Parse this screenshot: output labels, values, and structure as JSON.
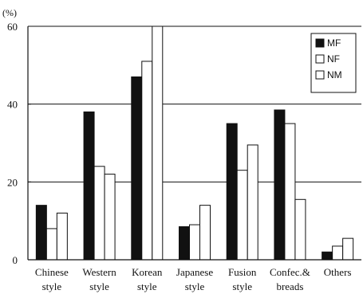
{
  "chart_data": {
    "type": "bar",
    "unit_label": "(%)",
    "categories": [
      [
        "Chinese",
        "style"
      ],
      [
        "Western",
        "style"
      ],
      [
        "Korean",
        "style"
      ],
      [
        "Japanese",
        "style"
      ],
      [
        "Fusion",
        "style"
      ],
      [
        "Confec.&",
        "breads"
      ],
      [
        "Others"
      ]
    ],
    "series": [
      {
        "name": "MF",
        "color": "#111111",
        "values": [
          14,
          38,
          47,
          8.5,
          35,
          38.5,
          2
        ]
      },
      {
        "name": "NF",
        "color": "#ffffff",
        "values": [
          8,
          24,
          51,
          9,
          23,
          35,
          3.5
        ]
      },
      {
        "name": "NM",
        "color": "#ffffff",
        "values": [
          12,
          22,
          60,
          14,
          29.5,
          15.5,
          5.5
        ]
      }
    ],
    "ylim": [
      0,
      60
    ],
    "yticks": [
      0,
      20,
      40,
      60
    ],
    "gridlines": [
      20,
      40
    ],
    "legend_position": "top-right"
  }
}
